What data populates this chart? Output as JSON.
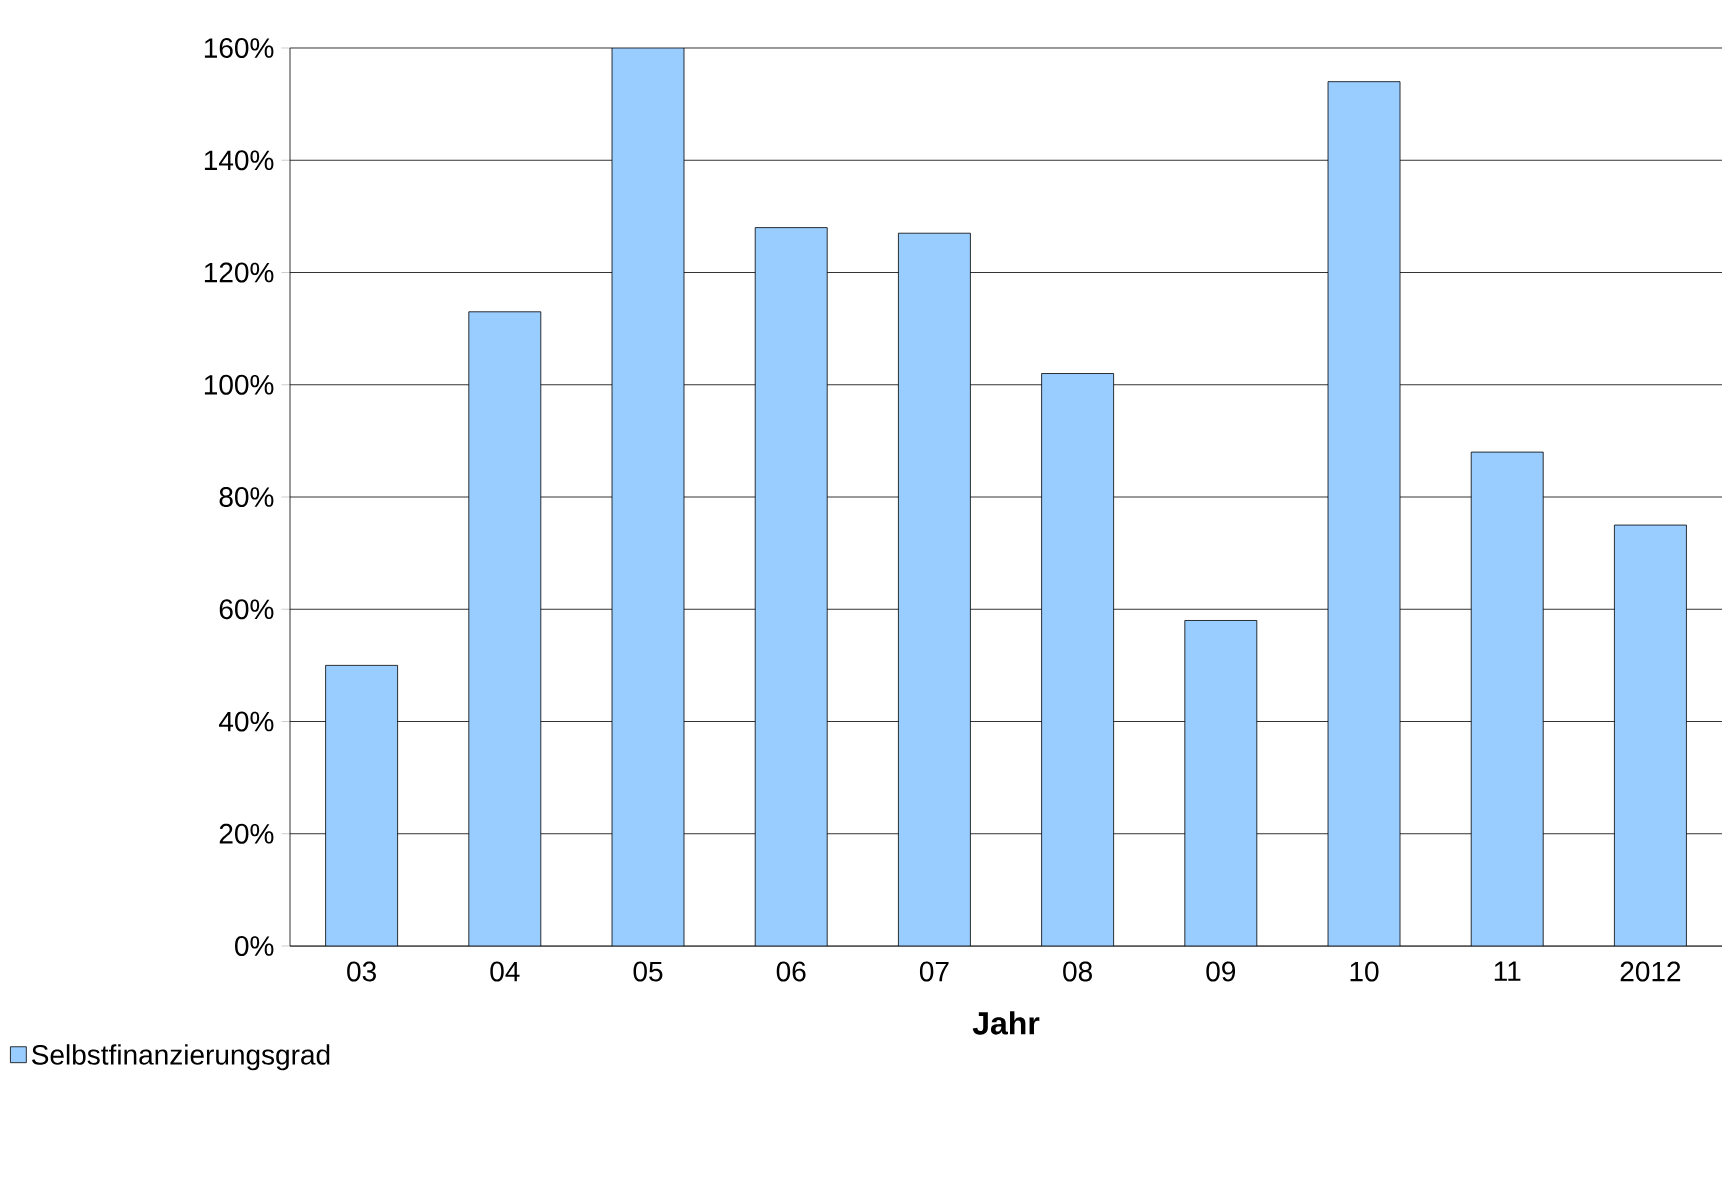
{
  "chart_data": {
    "type": "bar",
    "xlabel": "Jahr",
    "categories": [
      "03",
      "04",
      "05",
      "06",
      "07",
      "08",
      "09",
      "10",
      "11",
      "2012"
    ],
    "series": [
      {
        "name": "Selbstfinanzierungsgrad",
        "color": "#99ccff",
        "values": [
          50,
          113,
          160,
          128,
          127,
          102,
          58,
          154,
          88,
          75
        ]
      }
    ],
    "ylim": [
      0,
      160
    ],
    "yticks": [
      {
        "value": 0,
        "label": "0%"
      },
      {
        "value": 20,
        "label": "20%"
      },
      {
        "value": 40,
        "label": "40%"
      },
      {
        "value": 60,
        "label": "60%"
      },
      {
        "value": 80,
        "label": "80%"
      },
      {
        "value": 100,
        "label": "100%"
      },
      {
        "value": 120,
        "label": "120%"
      },
      {
        "value": 140,
        "label": "140%"
      },
      {
        "value": 160,
        "label": "160%"
      }
    ],
    "grid": "y",
    "legend": "bottom left"
  }
}
